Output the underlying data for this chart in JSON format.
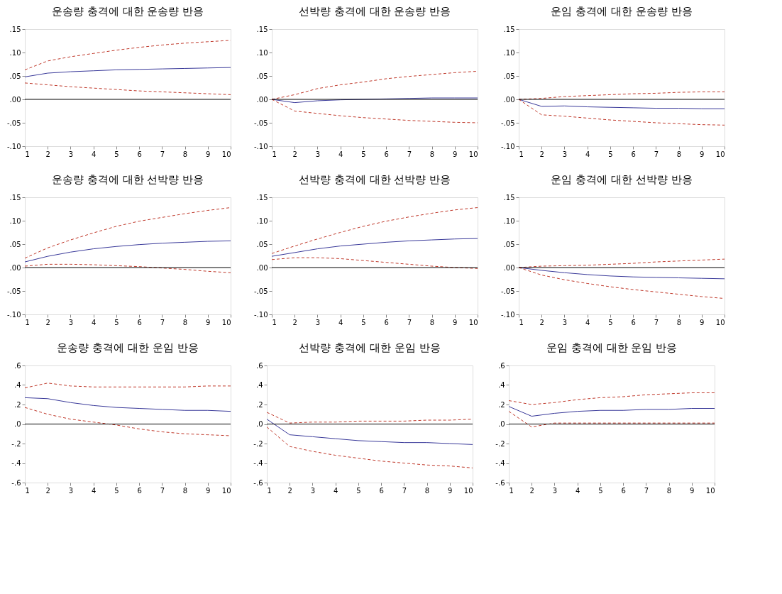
{
  "chart_data": [
    {
      "type": "line",
      "title": "운송량 충격에 대한 운송량 반응",
      "x": [
        1,
        2,
        3,
        4,
        5,
        6,
        7,
        8,
        9,
        10
      ],
      "xlim": [
        1,
        10
      ],
      "xticks": [
        1,
        2,
        3,
        4,
        5,
        6,
        7,
        8,
        9,
        10
      ],
      "ylim": [
        -0.1,
        0.15
      ],
      "yticks": [
        {
          "value": -0.1,
          "label": "-.10"
        },
        {
          "value": -0.05,
          "label": "-.05"
        },
        {
          "value": 0,
          "label": ".00"
        },
        {
          "value": 0.05,
          "label": ".05"
        },
        {
          "value": 0.1,
          "label": ".10"
        },
        {
          "value": 0.15,
          "label": ".15"
        }
      ],
      "grid": false,
      "ref_lines": [
        {
          "axis": "y",
          "value": 0,
          "color": "#000000"
        }
      ],
      "series": [
        {
          "color": "#3a3a9a",
          "line_style": "solid",
          "values": [
            0.048,
            0.056,
            0.059,
            0.061,
            0.063,
            0.064,
            0.065,
            0.066,
            0.067,
            0.068
          ]
        },
        {
          "color": "#c0392b",
          "line_style": "dashed",
          "values": [
            0.063,
            0.082,
            0.091,
            0.098,
            0.105,
            0.111,
            0.116,
            0.12,
            0.123,
            0.126
          ]
        },
        {
          "color": "#c0392b",
          "line_style": "dashed",
          "values": [
            0.035,
            0.031,
            0.027,
            0.024,
            0.021,
            0.018,
            0.016,
            0.014,
            0.012,
            0.01
          ]
        }
      ]
    },
    {
      "type": "line",
      "title": "선박량 충격에 대한 운송량 반응",
      "x": [
        1,
        2,
        3,
        4,
        5,
        6,
        7,
        8,
        9,
        10
      ],
      "xlim": [
        1,
        10
      ],
      "xticks": [
        1,
        2,
        3,
        4,
        5,
        6,
        7,
        8,
        9,
        10
      ],
      "ylim": [
        -0.1,
        0.15
      ],
      "yticks": [
        {
          "value": -0.1,
          "label": "-.10"
        },
        {
          "value": -0.05,
          "label": "-.05"
        },
        {
          "value": 0,
          "label": ".00"
        },
        {
          "value": 0.05,
          "label": ".05"
        },
        {
          "value": 0.1,
          "label": ".10"
        },
        {
          "value": 0.15,
          "label": ".15"
        }
      ],
      "grid": false,
      "ref_lines": [
        {
          "axis": "y",
          "value": 0,
          "color": "#000000"
        }
      ],
      "series": [
        {
          "color": "#3a3a9a",
          "line_style": "solid",
          "values": [
            0,
            -0.007,
            -0.003,
            -0.001,
            0,
            0.001,
            0.002,
            0.003,
            0.003,
            0.003
          ]
        },
        {
          "color": "#c0392b",
          "line_style": "dashed",
          "values": [
            0,
            0.01,
            0.023,
            0.031,
            0.037,
            0.044,
            0.049,
            0.053,
            0.057,
            0.06
          ]
        },
        {
          "color": "#c0392b",
          "line_style": "dashed",
          "values": [
            0,
            -0.025,
            -0.03,
            -0.035,
            -0.039,
            -0.042,
            -0.045,
            -0.047,
            -0.049,
            -0.05
          ]
        }
      ]
    },
    {
      "type": "line",
      "title": "운임 충격에 대한 운송량 반응",
      "x": [
        1,
        2,
        3,
        4,
        5,
        6,
        7,
        8,
        9,
        10
      ],
      "xlim": [
        1,
        10
      ],
      "xticks": [
        1,
        2,
        3,
        4,
        5,
        6,
        7,
        8,
        9,
        10
      ],
      "ylim": [
        -0.1,
        0.15
      ],
      "yticks": [
        {
          "value": -0.1,
          "label": "-.10"
        },
        {
          "value": -0.05,
          "label": "-.05"
        },
        {
          "value": 0,
          "label": ".00"
        },
        {
          "value": 0.05,
          "label": ".05"
        },
        {
          "value": 0.1,
          "label": ".10"
        },
        {
          "value": 0.15,
          "label": ".15"
        }
      ],
      "grid": false,
      "ref_lines": [
        {
          "axis": "y",
          "value": 0,
          "color": "#000000"
        }
      ],
      "series": [
        {
          "color": "#3a3a9a",
          "line_style": "solid",
          "values": [
            0,
            -0.015,
            -0.014,
            -0.016,
            -0.017,
            -0.018,
            -0.019,
            -0.019,
            -0.02,
            -0.02
          ]
        },
        {
          "color": "#c0392b",
          "line_style": "dashed",
          "values": [
            0,
            0.002,
            0.006,
            0.008,
            0.01,
            0.012,
            0.013,
            0.015,
            0.016,
            0.016
          ]
        },
        {
          "color": "#c0392b",
          "line_style": "dashed",
          "values": [
            0,
            -0.033,
            -0.036,
            -0.04,
            -0.044,
            -0.047,
            -0.05,
            -0.052,
            -0.054,
            -0.055
          ]
        }
      ]
    },
    {
      "type": "line",
      "title": "운송량 충격에 대한 선박량 반응",
      "x": [
        1,
        2,
        3,
        4,
        5,
        6,
        7,
        8,
        9,
        10
      ],
      "xlim": [
        1,
        10
      ],
      "xticks": [
        1,
        2,
        3,
        4,
        5,
        6,
        7,
        8,
        9,
        10
      ],
      "ylim": [
        -0.1,
        0.15
      ],
      "yticks": [
        {
          "value": -0.1,
          "label": "-.10"
        },
        {
          "value": -0.05,
          "label": "-.05"
        },
        {
          "value": 0,
          "label": ".00"
        },
        {
          "value": 0.05,
          "label": ".05"
        },
        {
          "value": 0.1,
          "label": ".10"
        },
        {
          "value": 0.15,
          "label": ".15"
        }
      ],
      "grid": false,
      "ref_lines": [
        {
          "axis": "y",
          "value": 0,
          "color": "#000000"
        }
      ],
      "series": [
        {
          "color": "#3a3a9a",
          "line_style": "solid",
          "values": [
            0.012,
            0.024,
            0.033,
            0.04,
            0.045,
            0.049,
            0.052,
            0.054,
            0.056,
            0.057
          ]
        },
        {
          "color": "#c0392b",
          "line_style": "dashed",
          "values": [
            0.02,
            0.042,
            0.059,
            0.074,
            0.088,
            0.099,
            0.107,
            0.115,
            0.122,
            0.128
          ]
        },
        {
          "color": "#c0392b",
          "line_style": "dashed",
          "values": [
            0.003,
            0.007,
            0.007,
            0.006,
            0.004,
            0.002,
            -0.001,
            -0.004,
            -0.008,
            -0.011
          ]
        }
      ]
    },
    {
      "type": "line",
      "title": "선박량 충격에 대한 선박량 반응",
      "x": [
        1,
        2,
        3,
        4,
        5,
        6,
        7,
        8,
        9,
        10
      ],
      "xlim": [
        1,
        10
      ],
      "xticks": [
        1,
        2,
        3,
        4,
        5,
        6,
        7,
        8,
        9,
        10
      ],
      "ylim": [
        -0.1,
        0.15
      ],
      "yticks": [
        {
          "value": -0.1,
          "label": "-.10"
        },
        {
          "value": -0.05,
          "label": "-.05"
        },
        {
          "value": 0,
          "label": ".00"
        },
        {
          "value": 0.05,
          "label": ".05"
        },
        {
          "value": 0.1,
          "label": ".10"
        },
        {
          "value": 0.15,
          "label": ".15"
        }
      ],
      "grid": false,
      "ref_lines": [
        {
          "axis": "y",
          "value": 0,
          "color": "#000000"
        }
      ],
      "series": [
        {
          "color": "#3a3a9a",
          "line_style": "solid",
          "values": [
            0.024,
            0.032,
            0.04,
            0.046,
            0.05,
            0.054,
            0.057,
            0.059,
            0.061,
            0.062
          ]
        },
        {
          "color": "#c0392b",
          "line_style": "dashed",
          "values": [
            0.03,
            0.046,
            0.061,
            0.075,
            0.088,
            0.099,
            0.108,
            0.116,
            0.123,
            0.128
          ]
        },
        {
          "color": "#c0392b",
          "line_style": "dashed",
          "values": [
            0.017,
            0.021,
            0.021,
            0.019,
            0.015,
            0.011,
            0.007,
            0.003,
            0,
            -0.002
          ]
        }
      ]
    },
    {
      "type": "line",
      "title": "운임 충격에 대한 선박량 반응",
      "x": [
        1,
        2,
        3,
        4,
        5,
        6,
        7,
        8,
        9,
        10
      ],
      "xlim": [
        1,
        10
      ],
      "xticks": [
        1,
        2,
        3,
        4,
        5,
        6,
        7,
        8,
        9,
        10
      ],
      "ylim": [
        -0.1,
        0.15
      ],
      "yticks": [
        {
          "value": -0.1,
          "label": "-.10"
        },
        {
          "value": -0.05,
          "label": "-.05"
        },
        {
          "value": 0,
          "label": ".00"
        },
        {
          "value": 0.05,
          "label": ".05"
        },
        {
          "value": 0.1,
          "label": ".10"
        },
        {
          "value": 0.15,
          "label": ".15"
        }
      ],
      "grid": false,
      "ref_lines": [
        {
          "axis": "y",
          "value": 0,
          "color": "#000000"
        }
      ],
      "series": [
        {
          "color": "#3a3a9a",
          "line_style": "solid",
          "values": [
            0,
            -0.006,
            -0.011,
            -0.015,
            -0.018,
            -0.02,
            -0.021,
            -0.022,
            -0.023,
            -0.024
          ]
        },
        {
          "color": "#c0392b",
          "line_style": "dashed",
          "values": [
            0,
            0.003,
            0.004,
            0.005,
            0.007,
            0.009,
            0.012,
            0.014,
            0.016,
            0.018
          ]
        },
        {
          "color": "#c0392b",
          "line_style": "dashed",
          "values": [
            0,
            -0.016,
            -0.026,
            -0.034,
            -0.041,
            -0.047,
            -0.052,
            -0.057,
            -0.062,
            -0.066
          ]
        }
      ]
    },
    {
      "type": "line",
      "title": "운송량 충격에 대한 운임 반응",
      "x": [
        1,
        2,
        3,
        4,
        5,
        6,
        7,
        8,
        9,
        10
      ],
      "xlim": [
        1,
        10
      ],
      "xticks": [
        1,
        2,
        3,
        4,
        5,
        6,
        7,
        8,
        9,
        10
      ],
      "ylim": [
        -0.6,
        0.6
      ],
      "yticks": [
        {
          "value": -0.6,
          "label": "-.6"
        },
        {
          "value": -0.4,
          "label": "-.4"
        },
        {
          "value": -0.2,
          "label": "-.2"
        },
        {
          "value": 0,
          "label": ".0"
        },
        {
          "value": 0.2,
          "label": ".2"
        },
        {
          "value": 0.4,
          "label": ".4"
        },
        {
          "value": 0.6,
          "label": ".6"
        }
      ],
      "grid": false,
      "ref_lines": [
        {
          "axis": "y",
          "value": 0,
          "color": "#000000"
        }
      ],
      "series": [
        {
          "color": "#3a3a9a",
          "line_style": "solid",
          "values": [
            0.27,
            0.26,
            0.22,
            0.19,
            0.17,
            0.16,
            0.15,
            0.14,
            0.14,
            0.13
          ]
        },
        {
          "color": "#c0392b",
          "line_style": "dashed",
          "values": [
            0.37,
            0.42,
            0.39,
            0.38,
            0.38,
            0.38,
            0.38,
            0.38,
            0.39,
            0.39
          ]
        },
        {
          "color": "#c0392b",
          "line_style": "dashed",
          "values": [
            0.17,
            0.1,
            0.05,
            0.02,
            -0.01,
            -0.05,
            -0.08,
            -0.1,
            -0.11,
            -0.12
          ]
        }
      ]
    },
    {
      "type": "line",
      "title": "선박량 충격에 대한 운임 반응",
      "x": [
        1,
        2,
        3,
        4,
        5,
        6,
        7,
        8,
        9,
        10
      ],
      "xlim": [
        1,
        10
      ],
      "xticks": [
        1,
        2,
        3,
        4,
        5,
        6,
        7,
        8,
        9,
        10
      ],
      "ylim": [
        -0.6,
        0.6
      ],
      "yticks": [
        {
          "value": -0.6,
          "label": "-.6"
        },
        {
          "value": -0.4,
          "label": "-.4"
        },
        {
          "value": -0.2,
          "label": "-.2"
        },
        {
          "value": 0,
          "label": ".0"
        },
        {
          "value": 0.2,
          "label": ".2"
        },
        {
          "value": 0.4,
          "label": ".4"
        },
        {
          "value": 0.6,
          "label": ".6"
        }
      ],
      "grid": false,
      "ref_lines": [
        {
          "axis": "y",
          "value": 0,
          "color": "#000000"
        }
      ],
      "series": [
        {
          "color": "#3a3a9a",
          "line_style": "solid",
          "values": [
            0.05,
            -0.11,
            -0.13,
            -0.15,
            -0.17,
            -0.18,
            -0.19,
            -0.19,
            -0.2,
            -0.21
          ]
        },
        {
          "color": "#c0392b",
          "line_style": "dashed",
          "values": [
            0.12,
            0.01,
            0.02,
            0.02,
            0.03,
            0.03,
            0.03,
            0.04,
            0.04,
            0.05
          ]
        },
        {
          "color": "#c0392b",
          "line_style": "dashed",
          "values": [
            -0.03,
            -0.23,
            -0.28,
            -0.32,
            -0.35,
            -0.38,
            -0.4,
            -0.42,
            -0.43,
            -0.45
          ]
        }
      ]
    },
    {
      "type": "line",
      "title": "운임 충격에 대한 운임 반응",
      "x": [
        1,
        2,
        3,
        4,
        5,
        6,
        7,
        8,
        9,
        10
      ],
      "xlim": [
        1,
        10
      ],
      "xticks": [
        1,
        2,
        3,
        4,
        5,
        6,
        7,
        8,
        9,
        10
      ],
      "ylim": [
        -0.6,
        0.6
      ],
      "yticks": [
        {
          "value": -0.6,
          "label": "-.6"
        },
        {
          "value": -0.4,
          "label": "-.4"
        },
        {
          "value": -0.2,
          "label": "-.2"
        },
        {
          "value": 0,
          "label": ".0"
        },
        {
          "value": 0.2,
          "label": ".2"
        },
        {
          "value": 0.4,
          "label": ".4"
        },
        {
          "value": 0.6,
          "label": ".6"
        }
      ],
      "grid": false,
      "ref_lines": [
        {
          "axis": "y",
          "value": 0,
          "color": "#000000"
        }
      ],
      "series": [
        {
          "color": "#3a3a9a",
          "line_style": "solid",
          "values": [
            0.18,
            0.08,
            0.11,
            0.13,
            0.14,
            0.14,
            0.15,
            0.15,
            0.16,
            0.16
          ]
        },
        {
          "color": "#c0392b",
          "line_style": "dashed",
          "values": [
            0.24,
            0.2,
            0.22,
            0.25,
            0.27,
            0.28,
            0.3,
            0.31,
            0.32,
            0.32
          ]
        },
        {
          "color": "#c0392b",
          "line_style": "dashed",
          "values": [
            0.13,
            -0.03,
            0.01,
            0.01,
            0.01,
            0.01,
            0.01,
            0.01,
            0.01,
            0.01
          ]
        }
      ]
    }
  ]
}
